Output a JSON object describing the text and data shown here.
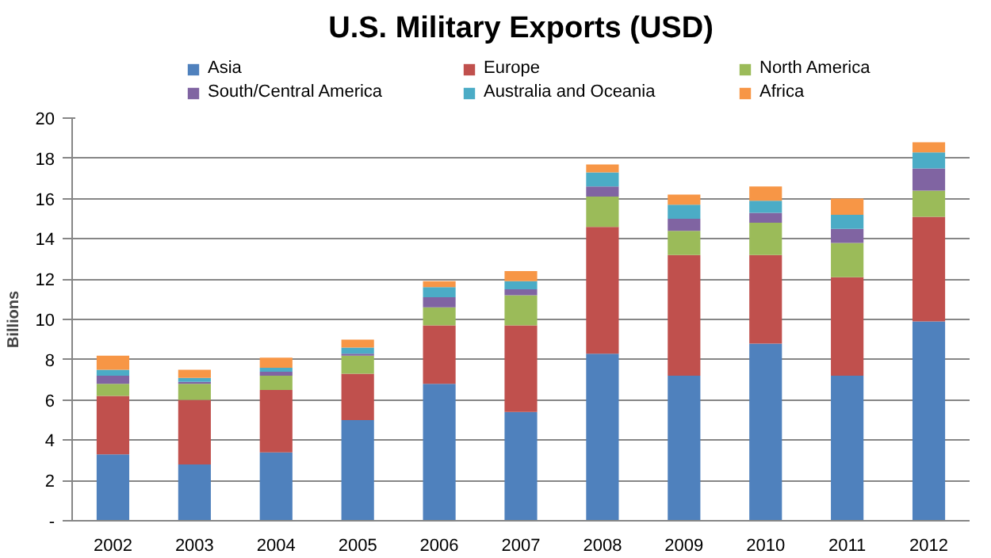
{
  "chart_data": {
    "type": "bar",
    "stacked": true,
    "title": "U.S. Military Exports (USD)",
    "ylabel": "Billions",
    "categories": [
      "2002",
      "2003",
      "2004",
      "2005",
      "2006",
      "2007",
      "2008",
      "2009",
      "2010",
      "2011",
      "2012"
    ],
    "series": [
      {
        "name": "Asia",
        "color": "#4f81bd",
        "values": [
          3.3,
          2.8,
          3.4,
          5.0,
          6.8,
          5.4,
          8.3,
          7.2,
          8.8,
          7.2,
          9.9
        ]
      },
      {
        "name": "Europe",
        "color": "#c0504d",
        "values": [
          2.9,
          3.2,
          3.1,
          2.3,
          2.9,
          4.3,
          6.3,
          6.0,
          4.4,
          4.9,
          5.2
        ]
      },
      {
        "name": "North America",
        "color": "#9bbb59",
        "values": [
          0.6,
          0.8,
          0.7,
          0.9,
          0.9,
          1.5,
          1.5,
          1.2,
          1.6,
          1.7,
          1.3
        ]
      },
      {
        "name": "South/Central America",
        "color": "#8064a2",
        "values": [
          0.4,
          0.1,
          0.2,
          0.1,
          0.5,
          0.3,
          0.5,
          0.6,
          0.5,
          0.7,
          1.1
        ]
      },
      {
        "name": "Australia and Oceania",
        "color": "#4bacc6",
        "values": [
          0.3,
          0.2,
          0.2,
          0.3,
          0.5,
          0.4,
          0.7,
          0.7,
          0.6,
          0.7,
          0.8
        ]
      },
      {
        "name": "Africa",
        "color": "#f79646",
        "values": [
          0.7,
          0.4,
          0.5,
          0.4,
          0.3,
          0.5,
          0.4,
          0.5,
          0.7,
          0.8,
          0.5
        ]
      }
    ],
    "ylim": [
      0,
      20
    ],
    "yticks": [
      {
        "value": 0,
        "label": "-"
      },
      2,
      4,
      6,
      8,
      10,
      12,
      14,
      16,
      18,
      20
    ],
    "grid": "y",
    "legend": "top"
  }
}
